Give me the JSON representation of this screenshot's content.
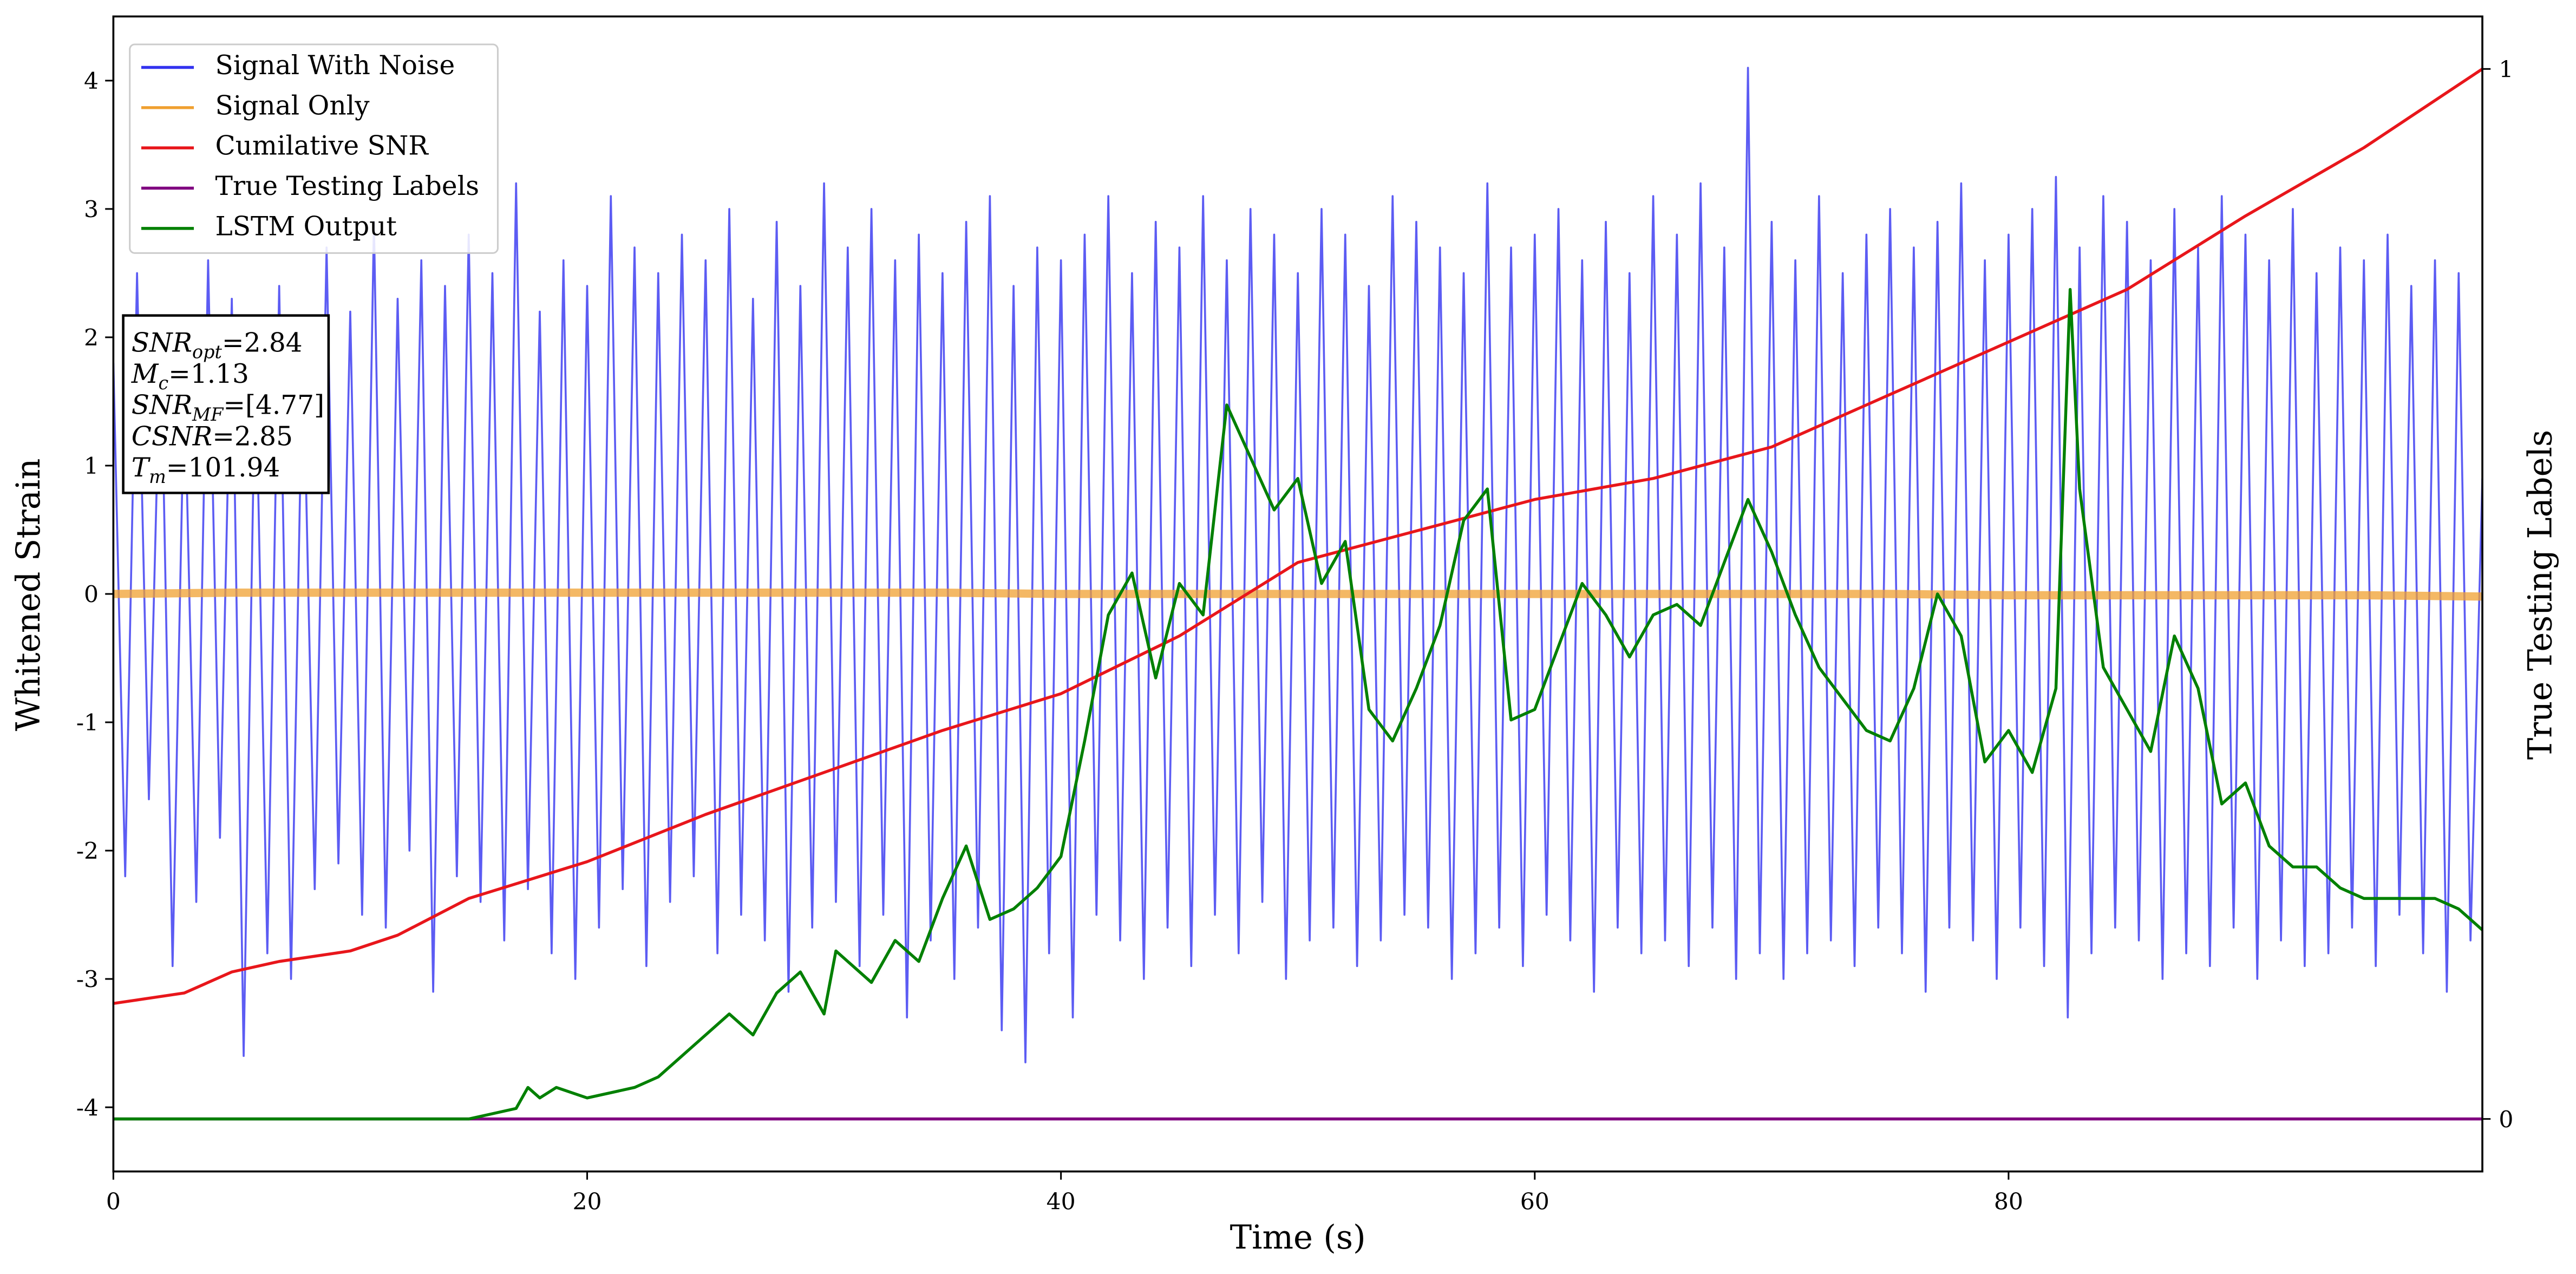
{
  "chart_data": {
    "type": "line",
    "xlabel": "Time (s)",
    "ylabel": "Whitened Strain",
    "y2label": "True Testing Labels",
    "xlim": [
      0,
      100
    ],
    "xticks": [
      0,
      20,
      40,
      60,
      80
    ],
    "ylim": [
      -4.5,
      4.5
    ],
    "yticks": [
      -4,
      -3,
      -2,
      -1,
      0,
      1,
      2,
      3,
      4
    ],
    "y2lim": [
      -0.05,
      1.05
    ],
    "y2ticks": [
      0,
      1
    ],
    "legend": "upper left",
    "annotation": [
      {
        "base": "SNR",
        "sub": "opt",
        "text": "=2.84"
      },
      {
        "base": "M",
        "sub": "c",
        "text": "=1.13"
      },
      {
        "base": "SNR",
        "sub": "MF",
        "text": "=[4.77]"
      },
      {
        "base": "CSNR",
        "sub": "",
        "text": "=2.85"
      },
      {
        "base": "T",
        "sub": "m",
        "text": "=101.94"
      }
    ],
    "series": [
      {
        "name": "Signal With Noise",
        "color": "#3333f0",
        "x": [
          0,
          0.5,
          1,
          1.5,
          2,
          2.5,
          3,
          3.5,
          4,
          4.5,
          5,
          5.5,
          6,
          6.5,
          7,
          7.5,
          8,
          8.5,
          9,
          9.5,
          10,
          10.5,
          11,
          11.5,
          12,
          12.5,
          13,
          13.5,
          14,
          14.5,
          15,
          15.5,
          16,
          16.5,
          17,
          17.5,
          18,
          18.5,
          19,
          19.5,
          20,
          20.5,
          21,
          21.5,
          22,
          22.5,
          23,
          23.5,
          24,
          24.5,
          25,
          25.5,
          26,
          26.5,
          27,
          27.5,
          28,
          28.5,
          29,
          29.5,
          30,
          30.5,
          31,
          31.5,
          32,
          32.5,
          33,
          33.5,
          34,
          34.5,
          35,
          35.5,
          36,
          36.5,
          37,
          37.5,
          38,
          38.5,
          39,
          39.5,
          40,
          40.5,
          41,
          41.5,
          42,
          42.5,
          43,
          43.5,
          44,
          44.5,
          45,
          45.5,
          46,
          46.5,
          47,
          47.5,
          48,
          48.5,
          49,
          49.5,
          50,
          50.5,
          51,
          51.5,
          52,
          52.5,
          53,
          53.5,
          54,
          54.5,
          55,
          55.5,
          56,
          56.5,
          57,
          57.5,
          58,
          58.5,
          59,
          59.5,
          60,
          60.5,
          61,
          61.5,
          62,
          62.5,
          63,
          63.5,
          64,
          64.5,
          65,
          65.5,
          66,
          66.5,
          67,
          67.5,
          68,
          68.5,
          69,
          69.5,
          70,
          70.5,
          71,
          71.5,
          72,
          72.5,
          73,
          73.5,
          74,
          74.5,
          75,
          75.5,
          76,
          76.5,
          77,
          77.5,
          78,
          78.5,
          79,
          79.5,
          80,
          80.5,
          81,
          81.5,
          82,
          82.5,
          83,
          83.5,
          84,
          84.5,
          85,
          85.5,
          86,
          86.5,
          87,
          87.5,
          88,
          88.5,
          89,
          89.5,
          90,
          90.5,
          91,
          91.5,
          92,
          92.5,
          93,
          93.5,
          94,
          94.5,
          95,
          95.5,
          96,
          96.5,
          97,
          97.5,
          98,
          98.5,
          99,
          99.5,
          100
        ],
        "values": [
          1.8,
          -2.2,
          2.5,
          -1.6,
          2.1,
          -2.9,
          1.7,
          -2.4,
          2.6,
          -1.9,
          2.3,
          -3.6,
          1.9,
          -2.8,
          2.4,
          -3.0,
          2.0,
          -2.3,
          2.7,
          -2.1,
          2.2,
          -2.5,
          2.9,
          -2.6,
          2.3,
          -2.0,
          2.6,
          -3.1,
          2.4,
          -2.2,
          2.8,
          -2.4,
          2.5,
          -2.7,
          3.2,
          -2.3,
          2.2,
          -2.8,
          2.6,
          -3.0,
          2.4,
          -2.6,
          3.1,
          -2.3,
          2.7,
          -2.9,
          2.5,
          -2.4,
          2.8,
          -2.2,
          2.6,
          -2.8,
          3.0,
          -2.5,
          2.3,
          -2.7,
          2.9,
          -3.1,
          2.4,
          -2.6,
          3.2,
          -2.4,
          2.7,
          -2.9,
          3.0,
          -2.5,
          2.6,
          -3.3,
          2.8,
          -2.7,
          2.5,
          -3.0,
          2.9,
          -2.6,
          3.1,
          -3.4,
          2.4,
          -3.65,
          2.7,
          -2.8,
          2.6,
          -3.3,
          2.8,
          -2.5,
          3.1,
          -2.7,
          2.5,
          -3.0,
          2.9,
          -2.6,
          2.7,
          -2.9,
          3.1,
          -2.5,
          2.6,
          -2.8,
          3.0,
          -2.4,
          2.8,
          -3.0,
          2.5,
          -2.7,
          3.0,
          -2.6,
          2.8,
          -2.9,
          2.4,
          -2.7,
          3.1,
          -2.5,
          2.9,
          -2.6,
          2.7,
          -3.0,
          2.5,
          -2.8,
          3.2,
          -2.6,
          2.7,
          -2.9,
          2.8,
          -2.5,
          3.0,
          -2.7,
          2.6,
          -3.1,
          2.9,
          -2.6,
          2.5,
          -2.8,
          3.1,
          -2.7,
          2.8,
          -2.9,
          3.2,
          -2.6,
          2.7,
          -3.0,
          4.1,
          -2.8,
          2.9,
          -3.0,
          2.6,
          -2.8,
          3.1,
          -2.7,
          2.5,
          -2.9,
          2.8,
          -2.6,
          3.0,
          -2.8,
          2.7,
          -3.1,
          2.9,
          -2.6,
          3.2,
          -2.7,
          2.6,
          -3.0,
          2.8,
          -2.6,
          3.0,
          -2.9,
          3.25,
          -3.3,
          2.7,
          -2.8,
          3.1,
          -2.6,
          2.9,
          -2.7,
          2.6,
          -3.0,
          3.0,
          -2.8,
          2.7,
          -2.9,
          3.1,
          -2.6,
          2.8,
          -3.0,
          2.6,
          -2.7,
          3.0,
          -2.9,
          2.5,
          -2.8,
          2.7,
          -2.6,
          2.6,
          -2.9,
          2.8,
          -2.5,
          2.4,
          -2.8,
          2.6,
          -3.1,
          2.5,
          -2.7,
          0.9
        ]
      },
      {
        "name": "Signal Only",
        "color": "#f0a030",
        "x": [
          0,
          5,
          10,
          15,
          20,
          25,
          30,
          35,
          40,
          45,
          50,
          55,
          60,
          65,
          70,
          75,
          80,
          85,
          90,
          95,
          100
        ],
        "values": [
          0.0,
          0.01,
          0.01,
          0.01,
          0.01,
          0.01,
          0.01,
          0.01,
          0.0,
          0.0,
          0.0,
          0.0,
          0.0,
          0.0,
          0.0,
          0.0,
          -0.01,
          -0.01,
          -0.01,
          -0.01,
          -0.02
        ]
      },
      {
        "name": "Cumilative SNR",
        "color": "#e8161b",
        "axis": "y2",
        "x": [
          0,
          3,
          5,
          7,
          10,
          12,
          15,
          20,
          25,
          30,
          35,
          40,
          45,
          50,
          55,
          60,
          65,
          70,
          75,
          80,
          85,
          90,
          95,
          100
        ],
        "values": [
          0.11,
          0.12,
          0.14,
          0.15,
          0.16,
          0.175,
          0.21,
          0.245,
          0.29,
          0.33,
          0.37,
          0.405,
          0.46,
          0.53,
          0.56,
          0.59,
          0.61,
          0.64,
          0.69,
          0.74,
          0.79,
          0.86,
          0.925,
          1.0
        ]
      },
      {
        "name": "True Testing Labels",
        "color": "#800080",
        "axis": "y2",
        "x": [
          0,
          100
        ],
        "values": [
          0,
          0
        ]
      },
      {
        "name": "LSTM Output",
        "color": "#008000",
        "axis": "y2",
        "x": [
          0,
          14,
          15,
          17,
          17.5,
          18,
          18.7,
          20,
          22,
          23,
          24,
          25,
          26,
          27,
          28,
          29,
          30,
          30.5,
          31,
          32,
          33,
          34,
          35,
          36,
          37,
          38,
          39,
          40,
          41,
          42,
          43,
          44,
          45,
          46,
          47,
          48,
          49,
          50,
          51,
          52,
          53,
          54,
          55,
          56,
          57,
          58,
          59,
          60,
          61,
          62,
          63,
          64,
          65,
          66,
          67,
          68,
          69,
          70,
          71,
          72,
          73,
          74,
          75,
          76,
          77,
          78,
          79,
          80,
          81,
          82,
          82.6,
          83,
          84,
          85,
          86,
          87,
          88,
          89,
          90,
          91,
          92,
          93,
          94,
          95,
          96,
          97,
          98,
          99,
          100
        ],
        "values": [
          0,
          0,
          0.0,
          0.01,
          0.03,
          0.02,
          0.03,
          0.02,
          0.03,
          0.04,
          0.06,
          0.08,
          0.1,
          0.08,
          0.12,
          0.14,
          0.1,
          0.16,
          0.15,
          0.13,
          0.17,
          0.15,
          0.21,
          0.26,
          0.19,
          0.2,
          0.22,
          0.25,
          0.36,
          0.48,
          0.52,
          0.42,
          0.51,
          0.48,
          0.68,
          0.63,
          0.58,
          0.61,
          0.51,
          0.55,
          0.39,
          0.36,
          0.41,
          0.47,
          0.57,
          0.6,
          0.38,
          0.39,
          0.45,
          0.51,
          0.48,
          0.44,
          0.48,
          0.49,
          0.47,
          0.53,
          0.59,
          0.54,
          0.48,
          0.43,
          0.4,
          0.37,
          0.36,
          0.41,
          0.5,
          0.46,
          0.34,
          0.37,
          0.33,
          0.41,
          0.79,
          0.6,
          0.43,
          0.39,
          0.35,
          0.46,
          0.41,
          0.3,
          0.32,
          0.26,
          0.24,
          0.24,
          0.22,
          0.21,
          0.21,
          0.21,
          0.21,
          0.2,
          0.18
        ]
      }
    ]
  }
}
